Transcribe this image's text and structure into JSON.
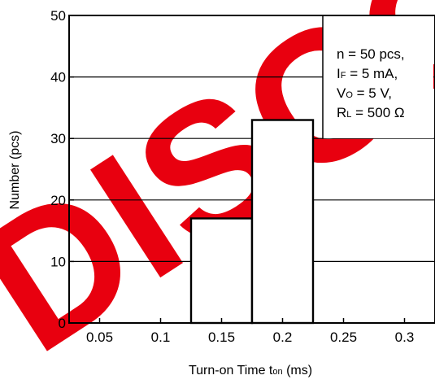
{
  "chart_data": {
    "type": "bar",
    "x": [
      0.05,
      0.1,
      0.15,
      0.2,
      0.25,
      0.3
    ],
    "x_tick_labels": [
      "0.05",
      "0.1",
      "0.15",
      "0.2",
      "0.25",
      "0.3"
    ],
    "bins": [
      {
        "x_start": 0.125,
        "x_end": 0.175,
        "value": 17
      },
      {
        "x_start": 0.175,
        "x_end": 0.225,
        "value": 33
      }
    ],
    "y_ticks": [
      0,
      10,
      20,
      30,
      40,
      50
    ],
    "y_tick_labels": [
      "0",
      "10",
      "20",
      "30",
      "40",
      "50"
    ],
    "xlim": [
      0.025,
      0.325
    ],
    "ylim": [
      0,
      50
    ],
    "ylabel": "Number  (pcs)",
    "xlabel_main": "Turn-on Time  t",
    "xlabel_sub": "on",
    "xlabel_unit": " (ms)",
    "grid": "horizontal",
    "conditions": {
      "line1": "n = 50 pcs,",
      "line2_main": "I",
      "line2_sub": "F",
      "line2_rest": " = 5 mA,",
      "line3_main": "V",
      "line3_sub": "O",
      "line3_rest": " = 5 V,",
      "line4_main": "R",
      "line4_sub": "L",
      "line4_rest": " = 500 Ω"
    },
    "watermark_text": "DISCO",
    "watermark_color": "#e8000f",
    "bar_fill": "#ffffff",
    "line_color": "#000000"
  }
}
